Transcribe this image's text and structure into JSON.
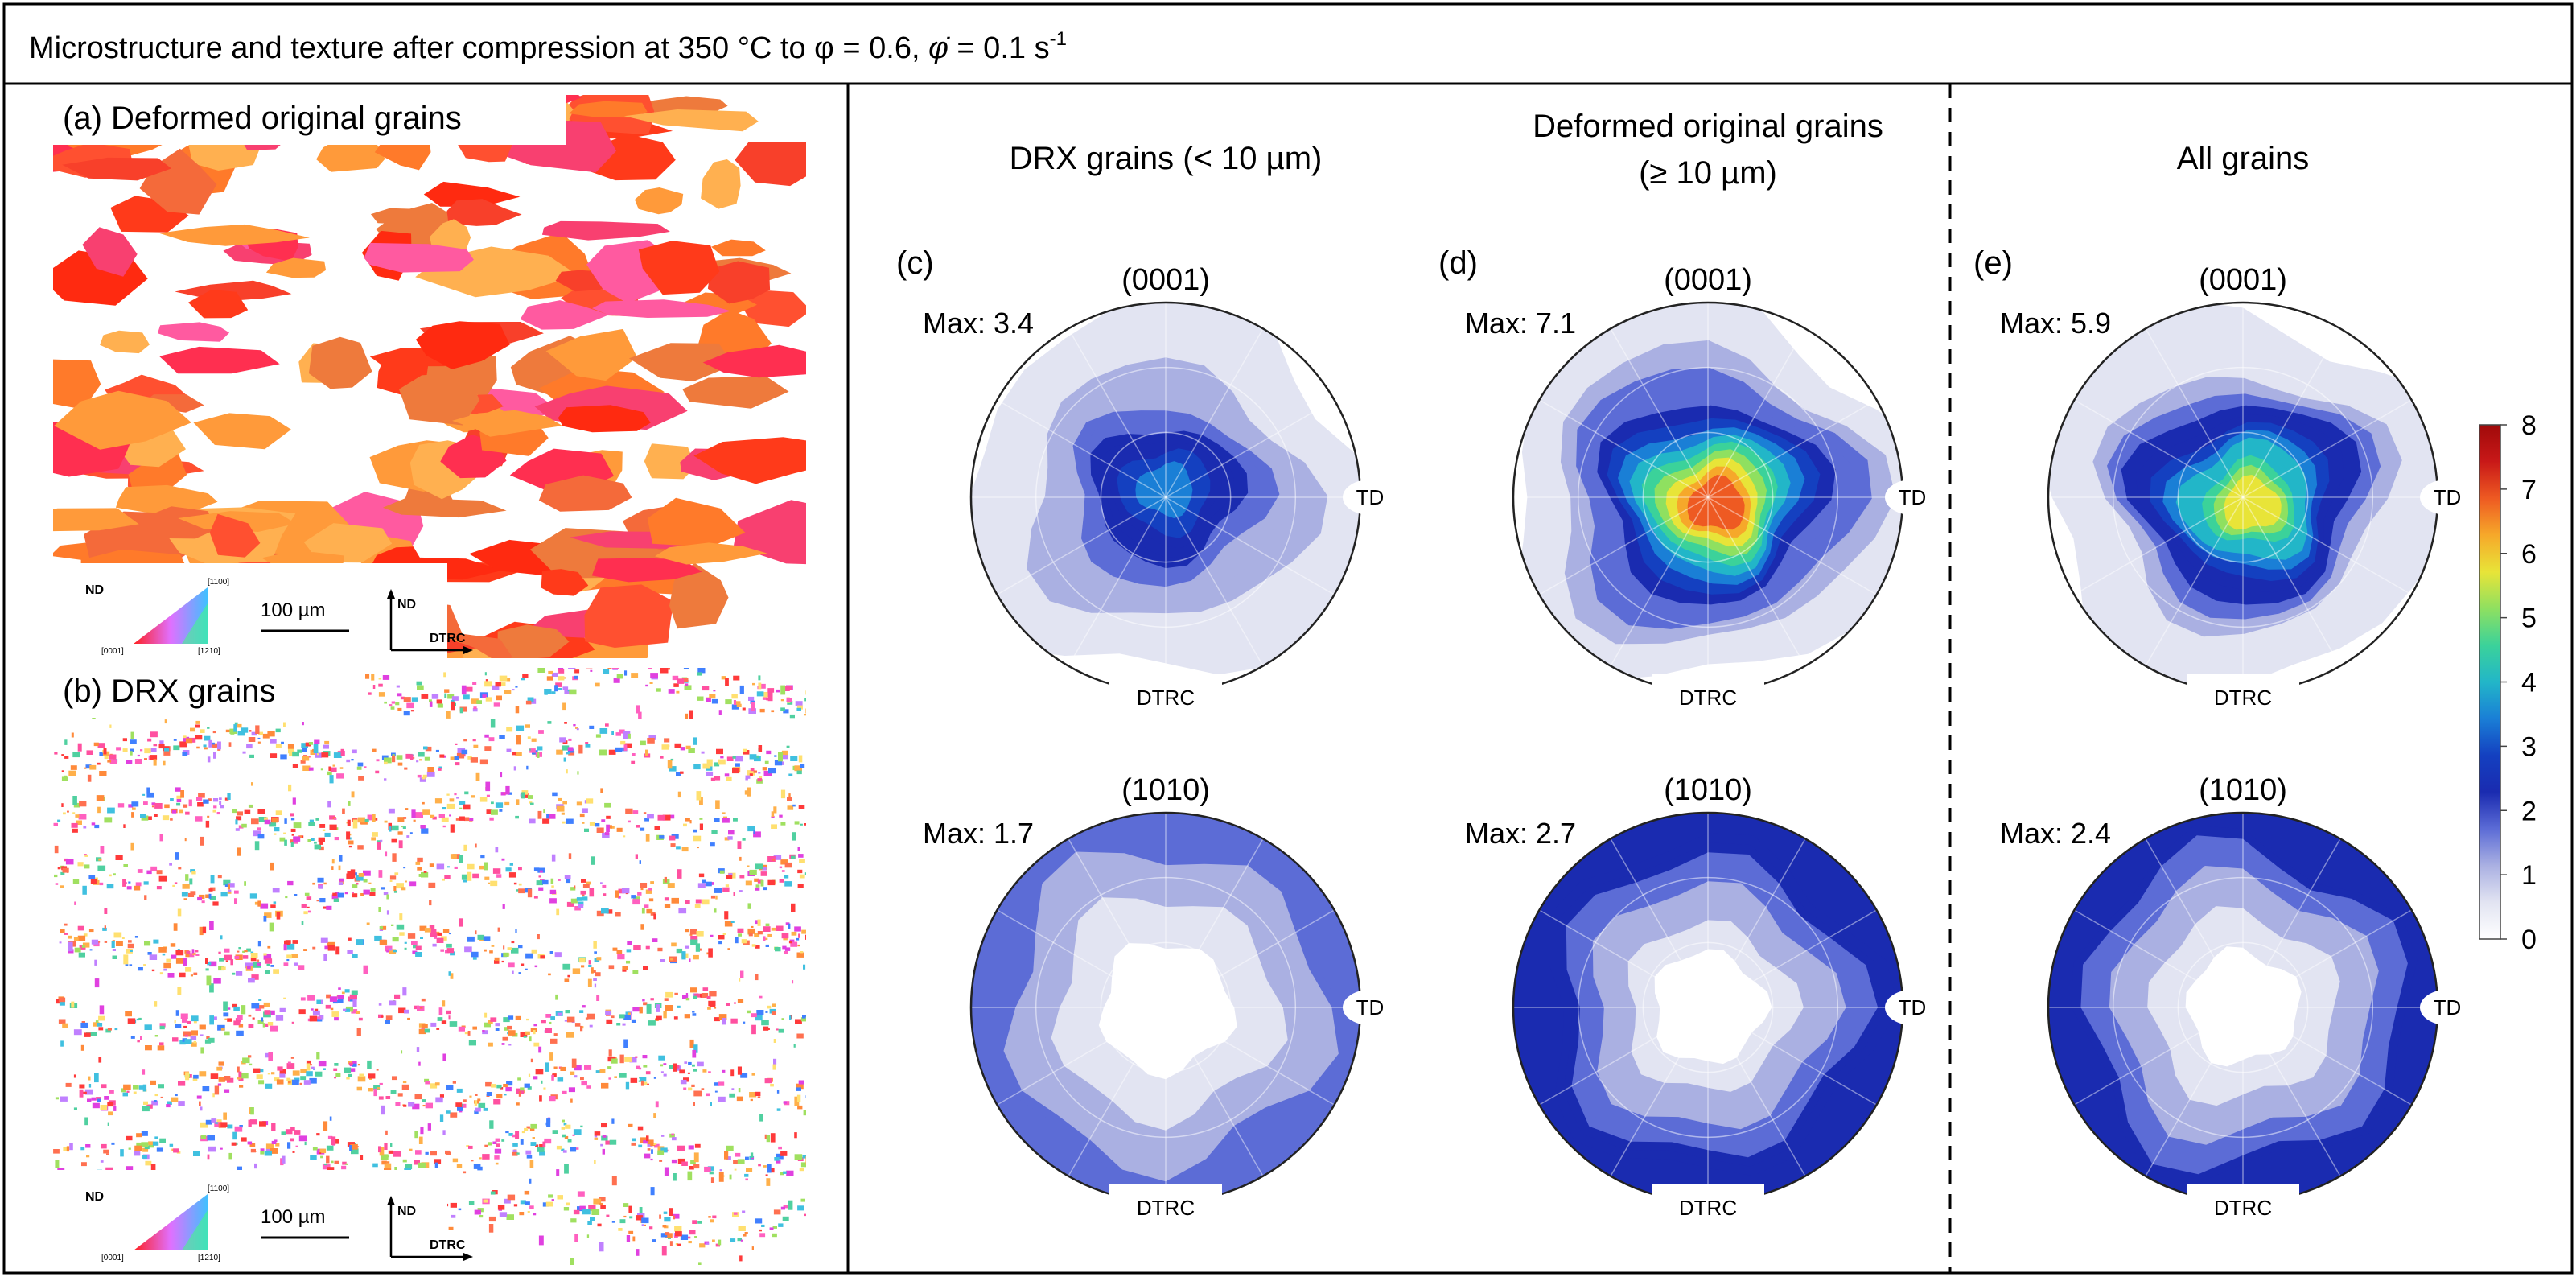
{
  "figure": {
    "header": {
      "text": "Microstructure and texture after compression at 350 °C to φ = 0.6, ",
      "rate_symbol": "φ̇",
      "rate_value": " = 0.1 s",
      "rate_exp": "-1"
    }
  },
  "maps": [
    {
      "label": "(a) Deformed original grains",
      "legend_axis": "ND",
      "legend_corners": [
        "[1100]",
        "[0001]",
        "[1210]"
      ],
      "scalebar": "100 µm",
      "frame_up": "ND",
      "frame_right": "DTRC",
      "style": "deformed"
    },
    {
      "label": "(b) DRX grains",
      "legend_axis": "ND",
      "legend_corners": [
        "[1100]",
        "[0001]",
        "[1210]"
      ],
      "scalebar": "100 µm",
      "frame_up": "ND",
      "frame_right": "DTRC",
      "style": "drx"
    }
  ],
  "columns": [
    {
      "title": [
        "DRX grains (< 10 µm)"
      ],
      "panel": "(c)",
      "basal": {
        "plane": "(0001)",
        "max": "Max: 3.4",
        "max_value": 3.4,
        "td": "TD",
        "rd": "DTRC"
      },
      "prism": {
        "plane": "(1010)",
        "max": "Max: 1.7",
        "max_value": 1.7,
        "td": "TD",
        "rd": "DTRC"
      }
    },
    {
      "title": [
        "Deformed original grains",
        "(≥ 10 µm)"
      ],
      "panel": "(d)",
      "basal": {
        "plane": "(0001)",
        "max": "Max: 7.1",
        "max_value": 7.1,
        "td": "TD",
        "rd": "DTRC"
      },
      "prism": {
        "plane": "(1010)",
        "max": "Max: 2.7",
        "max_value": 2.7,
        "td": "TD",
        "rd": "DTRC"
      }
    },
    {
      "title": [
        "All grains"
      ],
      "panel": "(e)",
      "basal": {
        "plane": "(0001)",
        "max": "Max: 5.9",
        "max_value": 5.9,
        "td": "TD",
        "rd": "DTRC"
      },
      "prism": {
        "plane": "(1010)",
        "max": "Max: 2.4",
        "max_value": 2.4,
        "td": "TD",
        "rd": "DTRC"
      }
    }
  ],
  "colorbar": {
    "min": 0,
    "max": 8,
    "ticks": [
      "0",
      "1",
      "2",
      "3",
      "4",
      "5",
      "6",
      "7",
      "8"
    ],
    "colors": [
      "#ffffff",
      "#e2e4f2",
      "#aab0e2",
      "#5c6cd6",
      "#1a2bb0",
      "#1440c0",
      "#1a7fd6",
      "#22b6c8",
      "#3bd29a",
      "#8fe060",
      "#e8e438",
      "#f6a82a",
      "#ee5a22",
      "#c81818",
      "#a00a0a"
    ]
  }
}
